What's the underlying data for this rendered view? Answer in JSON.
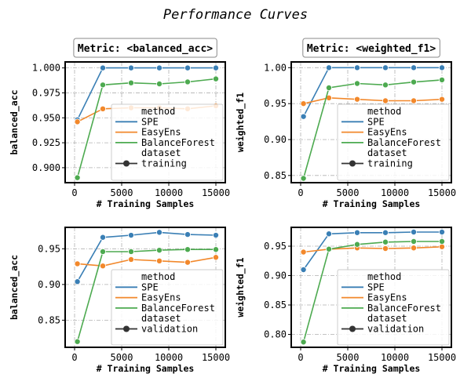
{
  "title": "Performance Curves",
  "colors": {
    "SPE": "#3a7fb5",
    "EasyEns": "#f2882b",
    "BalanceForest": "#4daa50"
  },
  "chart_data": [
    {
      "type": "line",
      "column_label": "Metric: <balanced_acc>",
      "xlabel": "# Training Samples",
      "ylabel": "balanced_acc",
      "xlim": [
        -1000,
        16000
      ],
      "ylim": [
        0.885,
        1.006
      ],
      "xticks": [
        0,
        5000,
        10000,
        15000
      ],
      "yticks": [
        0.9,
        0.925,
        0.95,
        0.975,
        1.0
      ],
      "ytick_labels": [
        "0.900",
        "0.925",
        "0.950",
        "0.975",
        "1.000"
      ],
      "x": [
        300,
        3000,
        6000,
        9000,
        12000,
        15000
      ],
      "series": [
        {
          "name": "SPE",
          "values": [
            0.948,
            1.0,
            1.0,
            1.0,
            1.0,
            1.0
          ]
        },
        {
          "name": "EasyEns",
          "values": [
            0.946,
            0.959,
            0.96,
            0.96,
            0.959,
            0.962
          ]
        },
        {
          "name": "BalanceForest",
          "values": [
            0.89,
            0.983,
            0.985,
            0.984,
            0.986,
            0.989
          ]
        }
      ],
      "legend": {
        "method_title": "method",
        "dataset_title": "dataset",
        "dataset": "training"
      }
    },
    {
      "type": "line",
      "column_label": "Metric: <weighted_f1>",
      "xlabel": "# Training Samples",
      "ylabel": "weighted_f1",
      "xlim": [
        -1000,
        16000
      ],
      "ylim": [
        0.84,
        1.008
      ],
      "xticks": [
        0,
        5000,
        10000,
        15000
      ],
      "yticks": [
        0.85,
        0.9,
        0.95,
        1.0
      ],
      "ytick_labels": [
        "0.85",
        "0.90",
        "0.95",
        "1.00"
      ],
      "x": [
        300,
        3000,
        6000,
        9000,
        12000,
        15000
      ],
      "series": [
        {
          "name": "SPE",
          "values": [
            0.932,
            1.0,
            1.0,
            1.0,
            1.0,
            1.0
          ]
        },
        {
          "name": "EasyEns",
          "values": [
            0.95,
            0.958,
            0.956,
            0.954,
            0.954,
            0.956
          ]
        },
        {
          "name": "BalanceForest",
          "values": [
            0.846,
            0.972,
            0.978,
            0.976,
            0.98,
            0.983
          ]
        }
      ],
      "legend": {
        "method_title": "method",
        "dataset_title": "dataset",
        "dataset": "training"
      }
    },
    {
      "type": "line",
      "xlabel": "# Training Samples",
      "ylabel": "balanced_acc",
      "xlim": [
        -1000,
        16000
      ],
      "ylim": [
        0.812,
        0.98
      ],
      "xticks": [
        0,
        5000,
        10000,
        15000
      ],
      "yticks": [
        0.85,
        0.9,
        0.95
      ],
      "ytick_labels": [
        "0.85",
        "0.90",
        "0.95"
      ],
      "x": [
        300,
        3000,
        6000,
        9000,
        12000,
        15000
      ],
      "series": [
        {
          "name": "SPE",
          "values": [
            0.904,
            0.966,
            0.969,
            0.973,
            0.97,
            0.969
          ]
        },
        {
          "name": "EasyEns",
          "values": [
            0.929,
            0.926,
            0.935,
            0.933,
            0.931,
            0.938
          ]
        },
        {
          "name": "BalanceForest",
          "values": [
            0.82,
            0.946,
            0.946,
            0.948,
            0.949,
            0.949
          ]
        }
      ],
      "legend": {
        "method_title": "method",
        "dataset_title": "dataset",
        "dataset": "validation"
      }
    },
    {
      "type": "line",
      "xlabel": "# Training Samples",
      "ylabel": "weighted_f1",
      "xlim": [
        -1000,
        16000
      ],
      "ylim": [
        0.778,
        0.982
      ],
      "xticks": [
        0,
        5000,
        10000,
        15000
      ],
      "yticks": [
        0.8,
        0.85,
        0.9,
        0.95
      ],
      "ytick_labels": [
        "0.80",
        "0.85",
        "0.90",
        "0.95"
      ],
      "x": [
        300,
        3000,
        6000,
        9000,
        12000,
        15000
      ],
      "series": [
        {
          "name": "SPE",
          "values": [
            0.91,
            0.971,
            0.973,
            0.973,
            0.974,
            0.974
          ]
        },
        {
          "name": "EasyEns",
          "values": [
            0.94,
            0.945,
            0.947,
            0.946,
            0.947,
            0.949
          ]
        },
        {
          "name": "BalanceForest",
          "values": [
            0.787,
            0.945,
            0.953,
            0.957,
            0.958,
            0.958
          ]
        }
      ],
      "legend": {
        "method_title": "method",
        "dataset_title": "dataset",
        "dataset": "validation"
      }
    }
  ]
}
